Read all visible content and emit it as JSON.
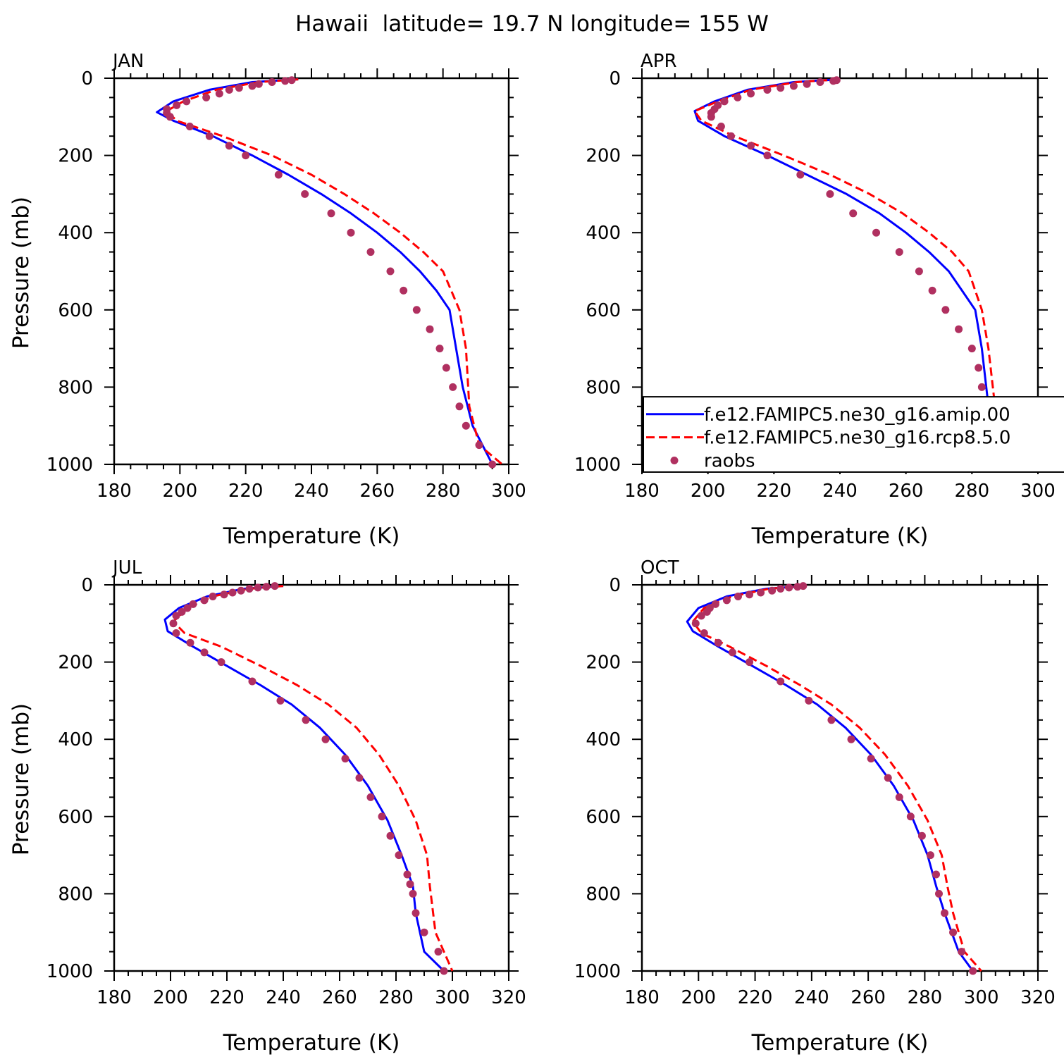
{
  "figure": {
    "title": "Hawaii  latitude= 19.7 N longitude= 155 W"
  },
  "legend": {
    "entries": [
      {
        "label": "f.e12.FAMIPC5.ne30_g16.amip.00",
        "color": "#0000ff",
        "style": "solid"
      },
      {
        "label": "f.e12.FAMIPC5.ne30_g16.rcp8.5.0",
        "color": "#ff0000",
        "style": "dashed"
      },
      {
        "label": "raobs",
        "color": "#b03060",
        "style": "dots"
      }
    ],
    "panel": 1
  },
  "chart_data": [
    {
      "type": "line",
      "panel_title": "JAN",
      "xlabel": "Temperature (K)",
      "ylabel": "Pressure (mb)",
      "xlim": [
        180,
        300
      ],
      "ylim": [
        1000,
        0
      ],
      "y_inverted": true,
      "xticks": [
        180,
        200,
        220,
        240,
        260,
        280,
        300
      ],
      "yticks": [
        0,
        200,
        400,
        600,
        800,
        1000
      ],
      "series": [
        {
          "name": "f.e12.FAMIPC5.ne30_g16.amip.00",
          "color": "#0000ff",
          "style": "solid",
          "x": [
            236,
            222,
            209,
            198,
            193,
            198,
            210,
            222,
            233,
            243,
            252,
            260,
            267,
            273,
            278,
            282,
            284,
            286,
            289,
            295
          ],
          "y": [
            3,
            10,
            30,
            60,
            88,
            110,
            150,
            200,
            250,
            300,
            350,
            400,
            450,
            500,
            550,
            600,
            700,
            800,
            900,
            1000
          ]
        },
        {
          "name": "f.e12.FAMIPC5.ne30_g16.rcp8.5.0",
          "color": "#ff0000",
          "style": "dashed",
          "x": [
            236,
            224,
            211,
            201,
            196,
            199,
            213,
            228,
            240,
            250,
            259,
            267,
            274,
            280,
            285,
            287,
            288,
            291,
            298
          ],
          "y": [
            3,
            10,
            30,
            60,
            85,
            110,
            150,
            200,
            250,
            300,
            350,
            400,
            450,
            500,
            600,
            700,
            850,
            950,
            1000
          ]
        },
        {
          "name": "raobs",
          "color": "#b03060",
          "style": "dots",
          "x": [
            234,
            232,
            228,
            224,
            222,
            218,
            215,
            212,
            208,
            202,
            199,
            196,
            196,
            197,
            203,
            209,
            215,
            220,
            230,
            238,
            246,
            252,
            258,
            264,
            268,
            272,
            276,
            279,
            281,
            283,
            285,
            287,
            291,
            295
          ],
          "y": [
            5,
            7,
            10,
            15,
            20,
            25,
            30,
            40,
            50,
            60,
            70,
            80,
            90,
            100,
            125,
            150,
            175,
            200,
            250,
            300,
            350,
            400,
            450,
            500,
            550,
            600,
            650,
            700,
            750,
            800,
            850,
            900,
            950,
            1000
          ]
        }
      ]
    },
    {
      "type": "line",
      "panel_title": "APR",
      "xlabel": "Temperature (K)",
      "ylabel": "",
      "xlim": [
        180,
        300
      ],
      "ylim": [
        1000,
        0
      ],
      "y_inverted": true,
      "xticks": [
        180,
        200,
        220,
        240,
        260,
        280,
        300
      ],
      "yticks": [
        0,
        200,
        400,
        600,
        800,
        1000
      ],
      "series": [
        {
          "name": "f.e12.FAMIPC5.ne30_g16.amip.00",
          "color": "#0000ff",
          "style": "solid",
          "x": [
            240,
            226,
            212,
            202,
            196,
            197,
            205,
            218,
            230,
            242,
            252,
            260,
            267,
            273,
            277,
            281,
            283,
            285,
            289,
            295
          ],
          "y": [
            3,
            10,
            30,
            60,
            85,
            110,
            150,
            200,
            250,
            300,
            350,
            400,
            450,
            500,
            550,
            600,
            700,
            850,
            950,
            1000
          ]
        },
        {
          "name": "f.e12.FAMIPC5.ne30_g16.rcp8.5.0",
          "color": "#ff0000",
          "style": "dashed",
          "x": [
            240,
            227,
            213,
            203,
            196,
            198,
            208,
            223,
            237,
            249,
            259,
            267,
            274,
            279,
            283,
            285,
            287,
            291,
            297
          ],
          "y": [
            3,
            10,
            30,
            60,
            85,
            110,
            150,
            200,
            250,
            300,
            350,
            400,
            450,
            500,
            600,
            700,
            850,
            950,
            1000
          ]
        },
        {
          "name": "raobs",
          "color": "#b03060",
          "style": "dots",
          "x": [
            239,
            238,
            234,
            230,
            226,
            222,
            218,
            213,
            209,
            205,
            203,
            202,
            201,
            201,
            204,
            207,
            213,
            218,
            228,
            237,
            244,
            251,
            258,
            264,
            268,
            272,
            276,
            280,
            282,
            283,
            284,
            286,
            291,
            295
          ],
          "y": [
            5,
            7,
            10,
            15,
            20,
            25,
            30,
            40,
            50,
            60,
            70,
            80,
            90,
            100,
            125,
            150,
            175,
            200,
            250,
            300,
            350,
            400,
            450,
            500,
            550,
            600,
            650,
            700,
            750,
            800,
            850,
            900,
            950,
            1000
          ]
        }
      ]
    },
    {
      "type": "line",
      "panel_title": "JUL",
      "xlabel": "Temperature (K)",
      "ylabel": "Pressure (mb)",
      "xlim": [
        180,
        320
      ],
      "ylim": [
        1000,
        0
      ],
      "y_inverted": true,
      "xticks": [
        180,
        200,
        220,
        240,
        260,
        280,
        300,
        320
      ],
      "yticks": [
        0,
        200,
        400,
        600,
        800,
        1000
      ],
      "series": [
        {
          "name": "f.e12.FAMIPC5.ne30_g16.amip.00",
          "color": "#0000ff",
          "style": "solid",
          "x": [
            240,
            226,
            213,
            203,
            198,
            199,
            208,
            220,
            232,
            243,
            253,
            262,
            270,
            277,
            282,
            286,
            287,
            290,
            297
          ],
          "y": [
            3,
            10,
            30,
            60,
            90,
            120,
            160,
            210,
            260,
            310,
            370,
            440,
            520,
            610,
            700,
            780,
            850,
            950,
            1000
          ]
        },
        {
          "name": "f.e12.FAMIPC5.ne30_g16.rcp8.5.0",
          "color": "#ff0000",
          "style": "dashed",
          "x": [
            240,
            228,
            215,
            206,
            201,
            205,
            218,
            232,
            245,
            256,
            266,
            274,
            281,
            287,
            291,
            292,
            294,
            300
          ],
          "y": [
            3,
            10,
            30,
            60,
            95,
            125,
            160,
            210,
            260,
            310,
            370,
            440,
            520,
            610,
            700,
            780,
            900,
            1000
          ]
        },
        {
          "name": "raobs",
          "color": "#b03060",
          "style": "dots",
          "x": [
            237,
            234,
            231,
            228,
            225,
            222,
            219,
            215,
            212,
            208,
            206,
            204,
            202,
            201,
            202,
            207,
            212,
            218,
            229,
            239,
            248,
            255,
            262,
            267,
            271,
            275,
            278,
            281,
            284,
            285,
            286,
            287,
            290,
            295,
            297
          ],
          "y": [
            3,
            5,
            7,
            10,
            15,
            20,
            25,
            30,
            40,
            50,
            60,
            70,
            80,
            100,
            125,
            150,
            175,
            200,
            250,
            300,
            350,
            400,
            450,
            500,
            550,
            600,
            650,
            700,
            750,
            775,
            800,
            850,
            900,
            950,
            1000
          ]
        }
      ]
    },
    {
      "type": "line",
      "panel_title": "OCT",
      "xlabel": "Temperature (K)",
      "ylabel": "",
      "xlim": [
        180,
        320
      ],
      "ylim": [
        1000,
        0
      ],
      "y_inverted": true,
      "xticks": [
        180,
        200,
        220,
        240,
        260,
        280,
        300,
        320
      ],
      "yticks": [
        0,
        200,
        400,
        600,
        800,
        1000
      ],
      "series": [
        {
          "name": "f.e12.FAMIPC5.ne30_g16.amip.00",
          "color": "#0000ff",
          "style": "solid",
          "x": [
            238,
            224,
            210,
            200,
            196,
            198,
            207,
            219,
            231,
            242,
            252,
            261,
            269,
            276,
            281,
            284,
            287,
            292,
            297
          ],
          "y": [
            3,
            10,
            30,
            60,
            95,
            120,
            160,
            210,
            260,
            310,
            370,
            440,
            520,
            610,
            700,
            780,
            850,
            950,
            1000
          ]
        },
        {
          "name": "f.e12.FAMIPC5.ne30_g16.rcp8.5.0",
          "color": "#ff0000",
          "style": "dashed",
          "x": [
            238,
            225,
            212,
            202,
            198,
            201,
            211,
            224,
            236,
            247,
            257,
            266,
            274,
            281,
            286,
            288,
            290,
            294,
            300
          ],
          "y": [
            3,
            10,
            30,
            60,
            95,
            125,
            160,
            210,
            260,
            310,
            370,
            440,
            520,
            610,
            700,
            780,
            850,
            950,
            1000
          ]
        },
        {
          "name": "raobs",
          "color": "#b03060",
          "style": "dots",
          "x": [
            237,
            235,
            232,
            229,
            226,
            222,
            218,
            214,
            210,
            206,
            204,
            203,
            201,
            199,
            202,
            207,
            212,
            218,
            229,
            239,
            247,
            254,
            261,
            267,
            271,
            275,
            279,
            282,
            284,
            285,
            287,
            290,
            293,
            297
          ],
          "y": [
            3,
            5,
            7,
            10,
            15,
            20,
            25,
            30,
            40,
            50,
            60,
            70,
            80,
            100,
            125,
            150,
            175,
            200,
            250,
            300,
            350,
            400,
            450,
            500,
            550,
            600,
            650,
            700,
            750,
            800,
            850,
            900,
            950,
            1000
          ]
        }
      ]
    }
  ]
}
